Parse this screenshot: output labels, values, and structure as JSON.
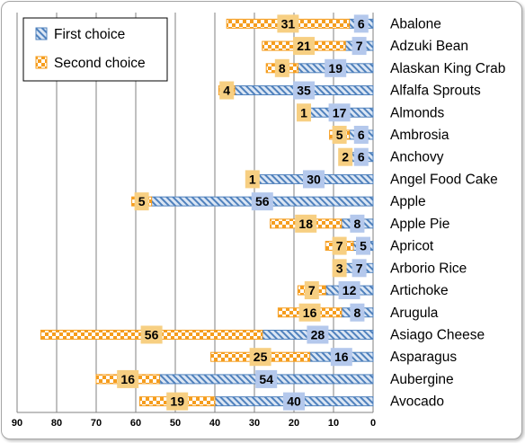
{
  "chart_data": {
    "type": "bar",
    "orientation": "horizontal",
    "stacked": true,
    "x_reversed": true,
    "categories": [
      "Abalone",
      "Adzuki Bean",
      "Alaskan King Crab",
      "Alfalfa Sprouts",
      "Almonds",
      "Ambrosia",
      "Anchovy",
      "Angel Food Cake",
      "Apple",
      "Apple Pie",
      "Apricot",
      "Arborio Rice",
      "Artichoke",
      "Arugula",
      "Asiago Cheese",
      "Asparagus",
      "Aubergine",
      "Avocado"
    ],
    "series": [
      {
        "name": "First choice",
        "values": [
          6,
          7,
          19,
          35,
          17,
          6,
          6,
          30,
          56,
          8,
          5,
          7,
          12,
          8,
          28,
          16,
          54,
          40
        ]
      },
      {
        "name": "Second choice",
        "values": [
          31,
          21,
          8,
          4,
          1,
          5,
          2,
          1,
          5,
          18,
          7,
          3,
          7,
          16,
          56,
          25,
          16,
          19
        ]
      }
    ],
    "xlim": [
      0,
      90
    ],
    "x_ticks": [
      90,
      80,
      70,
      60,
      50,
      40,
      30,
      20,
      10,
      0
    ],
    "grid": true,
    "legend_position": "top-left",
    "colors": {
      "first_fill": "#dbe6f4",
      "first_stripe": "#4f81bd",
      "first_label_bg": "#b4c8ec",
      "second_fill": "#ffffff",
      "second_check": "#f59d1e",
      "second_label_bg": "#f7cf82",
      "grid": "#808080"
    }
  }
}
